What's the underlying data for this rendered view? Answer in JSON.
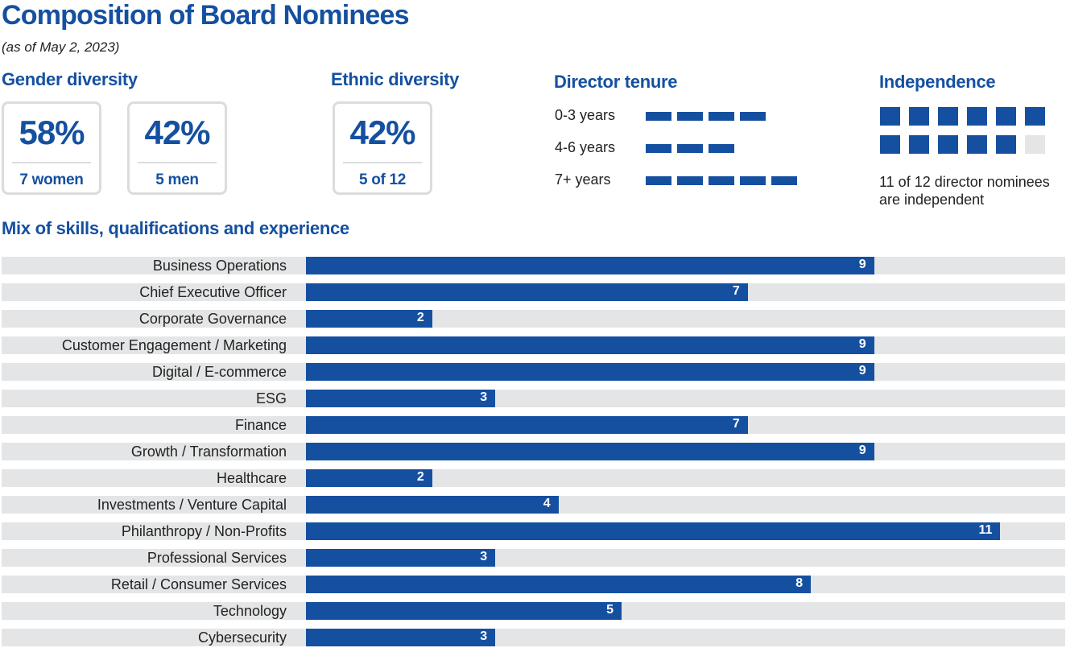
{
  "title": "Composition of Board Nominees",
  "as_of": "(as of May 2, 2023)",
  "gender": {
    "heading": "Gender diversity",
    "cards": [
      {
        "pct": "58%",
        "sub": "7 women"
      },
      {
        "pct": "42%",
        "sub": "5 men"
      }
    ]
  },
  "ethnic": {
    "heading": "Ethnic diversity",
    "card": {
      "pct": "42%",
      "sub": "5 of 12"
    }
  },
  "tenure": {
    "heading": "Director tenure",
    "rows": [
      {
        "label": "0-3 years",
        "count": 4
      },
      {
        "label": "4-6 years",
        "count": 3
      },
      {
        "label": "7+ years",
        "count": 5
      }
    ]
  },
  "independence": {
    "heading": "Independence",
    "independent": 11,
    "total": 12,
    "line1": "11 of 12 director nominees",
    "line2": "are independent"
  },
  "chart_data": {
    "type": "bar",
    "orientation": "horizontal",
    "title": "Mix of skills, qualifications and experience",
    "categories": [
      "Business Operations",
      "Chief Executive Officer",
      "Corporate Governance",
      "Customer Engagement / Marketing",
      "Digital / E-commerce",
      "ESG",
      "Finance",
      "Growth / Transformation",
      "Healthcare",
      "Investments / Venture Capital",
      "Philanthropy / Non-Profits",
      "Professional Services",
      "Retail / Consumer Services",
      "Technology",
      "Cybersecurity"
    ],
    "values": [
      9,
      7,
      2,
      9,
      9,
      3,
      7,
      9,
      2,
      4,
      11,
      3,
      8,
      5,
      3
    ],
    "xlim": [
      0,
      12
    ],
    "colors": {
      "bar": "#1550a0",
      "track": "#e4e5e6"
    }
  }
}
